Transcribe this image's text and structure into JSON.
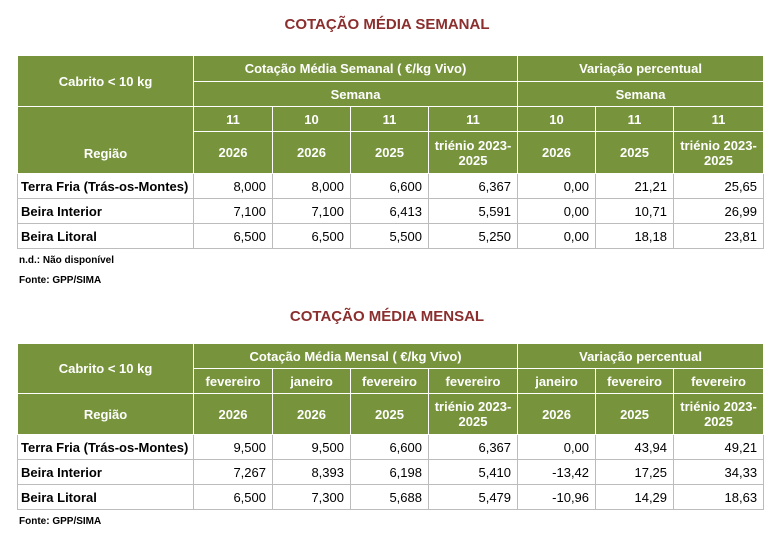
{
  "weekly": {
    "title": "COTAÇÃO MÉDIA SEMANAL",
    "product": "Cabrito < 10 kg",
    "price_group": "Cotação Média Semanal ( €/kg Vivo)",
    "var_group": "Variação percentual",
    "week_label": "Semana",
    "region_label": "Região",
    "periods": [
      "11",
      "10",
      "11",
      "11",
      "10",
      "11",
      "11"
    ],
    "years": [
      "2026",
      "2026",
      "2025",
      "triénio 2023-2025",
      "2026",
      "2025",
      "triénio 2023-2025"
    ],
    "rows": [
      {
        "region": "Terra Fria (Trás-os-Montes)",
        "values": [
          "8,000",
          "8,000",
          "6,600",
          "6,367",
          "0,00",
          "21,21",
          "25,65"
        ]
      },
      {
        "region": "Beira Interior",
        "values": [
          "7,100",
          "7,100",
          "6,413",
          "5,591",
          "0,00",
          "10,71",
          "26,99"
        ]
      },
      {
        "region": "Beira Litoral",
        "values": [
          "6,500",
          "6,500",
          "5,500",
          "5,250",
          "0,00",
          "18,18",
          "23,81"
        ]
      }
    ],
    "note_nd": "n.d.: Não disponível",
    "source": "Fonte: GPP/SIMA"
  },
  "monthly": {
    "title": "COTAÇÃO MÉDIA MENSAL",
    "product": "Cabrito < 10 kg",
    "price_group": "Cotação Média Mensal ( €/kg Vivo)",
    "var_group": "Variação percentual",
    "region_label": "Região",
    "periods": [
      "fevereiro",
      "janeiro",
      "fevereiro",
      "fevereiro",
      "janeiro",
      "fevereiro",
      "fevereiro"
    ],
    "years": [
      "2026",
      "2026",
      "2025",
      "triénio 2023-2025",
      "2026",
      "2025",
      "triénio 2023-2025"
    ],
    "rows": [
      {
        "region": "Terra Fria (Trás-os-Montes)",
        "values": [
          "9,500",
          "9,500",
          "6,600",
          "6,367",
          "0,00",
          "43,94",
          "49,21"
        ]
      },
      {
        "region": "Beira Interior",
        "values": [
          "7,267",
          "8,393",
          "6,198",
          "5,410",
          "-13,42",
          "17,25",
          "34,33"
        ]
      },
      {
        "region": "Beira Litoral",
        "values": [
          "6,500",
          "7,300",
          "5,688",
          "5,479",
          "-10,96",
          "14,29",
          "18,63"
        ]
      }
    ],
    "source": "Fonte: GPP/SIMA"
  }
}
